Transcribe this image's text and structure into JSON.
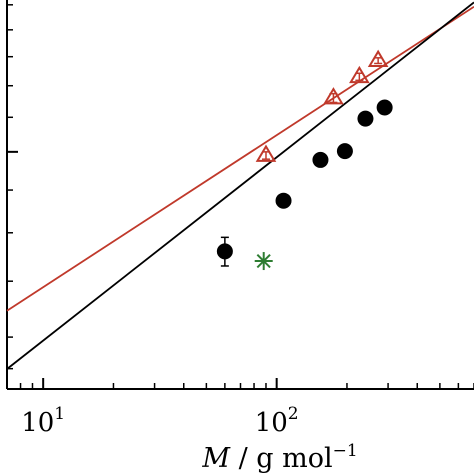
{
  "chart_data": {
    "type": "scatter",
    "x_scale": "log",
    "y_scale": "log",
    "xlim": [
      7,
      700
    ],
    "ylim": [
      0.52,
      1.52
    ],
    "xlabel": {
      "symbol": "M",
      "rest": " / g mol",
      "exponent": "−1"
    },
    "ylabel": "",
    "x_ticks": [
      {
        "value": 10,
        "base": "10",
        "exponent": "1"
      },
      {
        "value": 100,
        "base": "10",
        "exponent": "2"
      }
    ],
    "y_major_ticks": [
      1.0
    ],
    "y_minor_ticks": [
      0.55,
      0.6,
      0.7,
      0.8,
      0.9,
      1.1,
      1.2,
      1.3,
      1.4,
      1.5
    ],
    "series": [
      {
        "marker": "triangle-open",
        "color": "#c0392b",
        "x": [
          90,
          175,
          226,
          272
        ],
        "y": [
          0.99,
          1.16,
          1.23,
          1.286
        ],
        "err": [
          0.01,
          0.014,
          0.012,
          0.01
        ]
      },
      {
        "marker": "circle-filled",
        "color": "#000000",
        "x": [
          60,
          107,
          154,
          196,
          240,
          290
        ],
        "y": [
          0.76,
          0.874,
          0.978,
          1.002,
          1.096,
          1.13
        ],
        "err": [
          0.03,
          0.0,
          0.0,
          0.0,
          0.0,
          0.0
        ]
      },
      {
        "marker": "asterisk",
        "color": "#2e7d32",
        "x": [
          88
        ],
        "y": [
          0.74
        ],
        "err": [
          0
        ]
      }
    ],
    "fits": [
      {
        "color": "#c0392b",
        "x": [
          7,
          700
        ],
        "y": [
          0.6453,
          1.4922
        ]
      },
      {
        "color": "#000000",
        "x": [
          7,
          700
        ],
        "y": [
          0.5495,
          1.5101
        ]
      }
    ],
    "grid": false,
    "legend": "none"
  }
}
